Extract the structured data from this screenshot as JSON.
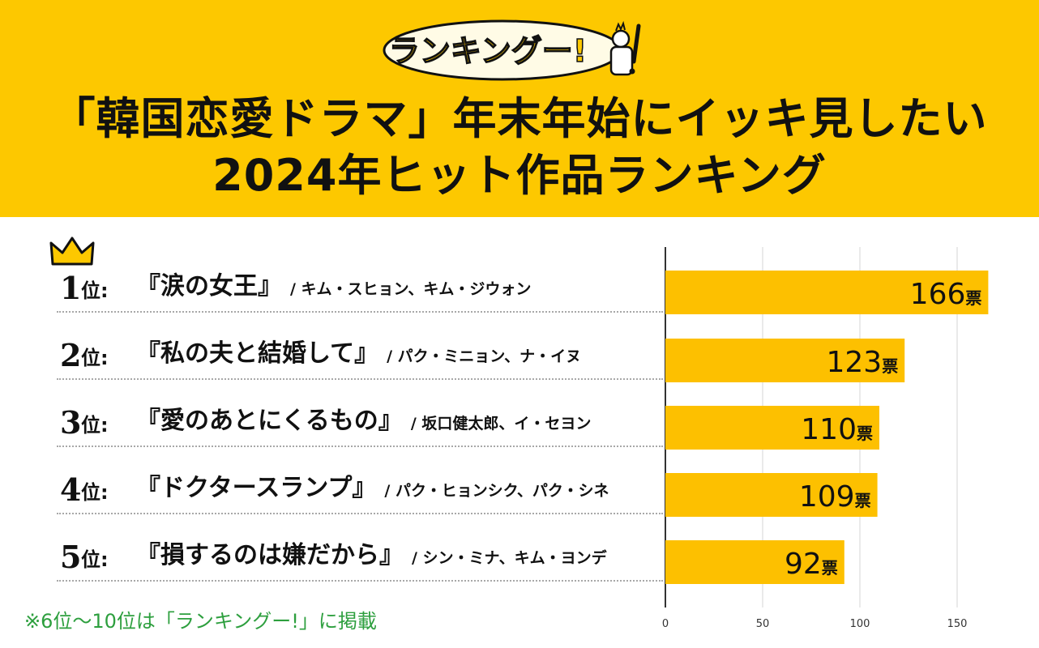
{
  "header": {
    "logo_text": "ランキングー!",
    "title_line1": "「韓国恋愛ドラマ」年末年始にイッキ見したい",
    "title_line2": "2024年ヒット作品ランキング"
  },
  "rankings": [
    {
      "rank": "1",
      "suffix": "位:",
      "title": "『涙の女王』",
      "cast": "/ キム・スヒョン、キム・ジウォン"
    },
    {
      "rank": "2",
      "suffix": "位:",
      "title": "『私の夫と結婚して』",
      "cast": "/ パク・ミニョン、ナ・イヌ"
    },
    {
      "rank": "3",
      "suffix": "位:",
      "title": "『愛のあとにくるもの』",
      "cast": "/ 坂口健太郎、イ・セヨン"
    },
    {
      "rank": "4",
      "suffix": "位:",
      "title": "『ドクタースランプ』",
      "cast": "/ パク・ヒョンシク、パク・シネ"
    },
    {
      "rank": "5",
      "suffix": "位:",
      "title": "『損するのは嫌だから』",
      "cast": "/ シン・ミナ、キム・ヨンデ"
    }
  ],
  "footnote": "※6位〜10位は「ランキングー!」に掲載",
  "colors": {
    "header_bg": "#fdc800",
    "bar": "#fdc000",
    "footnote": "#2d9f3e"
  },
  "chart_data": {
    "type": "bar",
    "orientation": "horizontal",
    "categories": [
      "1位",
      "2位",
      "3位",
      "4位",
      "5位"
    ],
    "values": [
      166,
      123,
      110,
      109,
      92
    ],
    "value_unit": "票",
    "xlim": [
      0,
      170
    ],
    "xticks": [
      0,
      50,
      100,
      150
    ],
    "grid": true,
    "title": "",
    "xlabel": "",
    "ylabel": ""
  }
}
